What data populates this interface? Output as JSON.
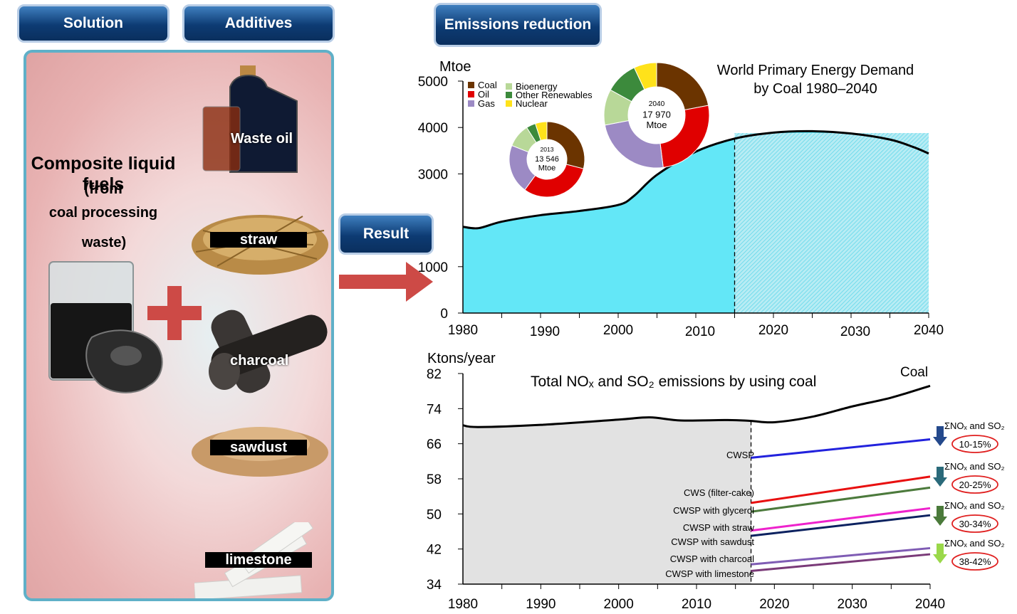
{
  "tabs": {
    "solution": "Solution",
    "additives": "Additives",
    "emissions": "Emissions reduction",
    "result": "Result"
  },
  "panel": {
    "title_main": "Composite liquid fuels",
    "title_paren": "(from",
    "title_line3": "coal processing",
    "title_line4": "waste)",
    "additives": {
      "waste_oil": "Waste oil",
      "straw": "straw",
      "charcoal": "charcoal",
      "sawdust": "sawdust",
      "limestone": "limestone"
    }
  },
  "chart_data": [
    {
      "type": "area",
      "title": "World Primary Energy Demand by Coal 1980–2040",
      "title_lines": [
        "World Primary Energy Demand",
        "by Coal 1980–2040"
      ],
      "ylabel": "Mtoe",
      "ylim": [
        0,
        5000
      ],
      "xlim": [
        1980,
        2040
      ],
      "yticks": [
        0,
        1000,
        3000,
        4000,
        5000
      ],
      "ytick_labels": [
        "0",
        "1000",
        "3000",
        "4000",
        "5000"
      ],
      "xticks": [
        1980,
        1990,
        2000,
        2010,
        2020,
        2030,
        2040
      ],
      "projection_start": 2015,
      "colors": {
        "area": "#63e7f7",
        "projection": "#b8ecf4"
      },
      "x": [
        1980,
        1982,
        1985,
        1990,
        1995,
        2000,
        2002,
        2005,
        2010,
        2015,
        2020,
        2025,
        2030,
        2035,
        2038,
        2040
      ],
      "y": [
        1860,
        1830,
        1970,
        2110,
        2200,
        2330,
        2520,
        2980,
        3480,
        3760,
        3890,
        3920,
        3870,
        3740,
        3580,
        3440
      ],
      "legend": [
        {
          "name": "Coal",
          "color": "#6b3400"
        },
        {
          "name": "Oil",
          "color": "#e00000"
        },
        {
          "name": "Gas",
          "color": "#9c8ac4"
        },
        {
          "name": "Bioenergy",
          "color": "#b8d898"
        },
        {
          "name": "Other Renewables",
          "color": "#3c8a3c"
        },
        {
          "name": "Nuclear",
          "color": "#ffe21a"
        }
      ],
      "pies": [
        {
          "year": "2013",
          "total": "13 546",
          "unit": "Mtoe",
          "shares": {
            "Coal": 29,
            "Oil": 31,
            "Gas": 21,
            "Bioenergy": 10,
            "Other Renewables": 4,
            "Nuclear": 5
          }
        },
        {
          "year": "2040",
          "total": "17 970",
          "unit": "Mtoe",
          "shares": {
            "Coal": 22,
            "Oil": 26,
            "Gas": 24,
            "Bioenergy": 11,
            "Other Renewables": 10,
            "Nuclear": 7
          }
        }
      ]
    },
    {
      "type": "line",
      "title": "Total NOₓ and SO₂ emissions by using coal",
      "ylabel": "Ktons/year",
      "ylim": [
        34,
        82
      ],
      "xlim": [
        1980,
        2040
      ],
      "yticks": [
        34,
        42,
        50,
        58,
        66,
        74,
        82
      ],
      "xticks": [
        1980,
        1990,
        2000,
        2010,
        2020,
        2030,
        2040
      ],
      "projection_start": 2017,
      "coal": {
        "name": "Coal",
        "x": [
          1980,
          1982,
          1990,
          2000,
          2004,
          2008,
          2014,
          2017,
          2020,
          2025,
          2030,
          2035,
          2040
        ],
        "y": [
          70.2,
          69.8,
          70.3,
          71.5,
          72.0,
          71.3,
          71.4,
          71.2,
          70.9,
          72.2,
          74.5,
          76.5,
          79.2
        ]
      },
      "series": [
        {
          "name": "CWSP",
          "x": [
            2017,
            2040
          ],
          "y": [
            62.8,
            67.0
          ],
          "color": "#2222dd"
        },
        {
          "name": "CWS (filter-cake)",
          "x": [
            2017,
            2040
          ],
          "y": [
            52.5,
            58.5
          ],
          "color": "#e81010"
        },
        {
          "name": "CWSP with glycerol",
          "x": [
            2017,
            2040
          ],
          "y": [
            50.5,
            56.0
          ],
          "color": "#4c7a3c"
        },
        {
          "name": "CWSP with straw",
          "x": [
            2017,
            2040
          ],
          "y": [
            46.2,
            51.3
          ],
          "color": "#ee22cc"
        },
        {
          "name": "CWSP with sawdust",
          "x": [
            2017,
            2040
          ],
          "y": [
            45.0,
            49.7
          ],
          "color": "#0c2260"
        },
        {
          "name": "CWSP with charcoal",
          "x": [
            2017,
            2040
          ],
          "y": [
            38.5,
            42.2
          ],
          "color": "#7f5cb4"
        },
        {
          "name": "CWSP with limestone",
          "x": [
            2017,
            2040
          ],
          "y": [
            37.0,
            40.8
          ],
          "color": "#7a3a78"
        }
      ],
      "reductions": [
        {
          "label": "ΣNOₓ and SO₂",
          "range": "10-15%",
          "arrow_color": "#24498c"
        },
        {
          "label": "ΣNOₓ and SO₂",
          "range": "20-25%",
          "arrow_color": "#2a6a7a"
        },
        {
          "label": "ΣNOₓ and SO₂",
          "range": "30-34%",
          "arrow_color": "#4a7a3a"
        },
        {
          "label": "ΣNOₓ and SO₂",
          "range": "38-42%",
          "arrow_color": "#9ad84a"
        }
      ]
    }
  ]
}
